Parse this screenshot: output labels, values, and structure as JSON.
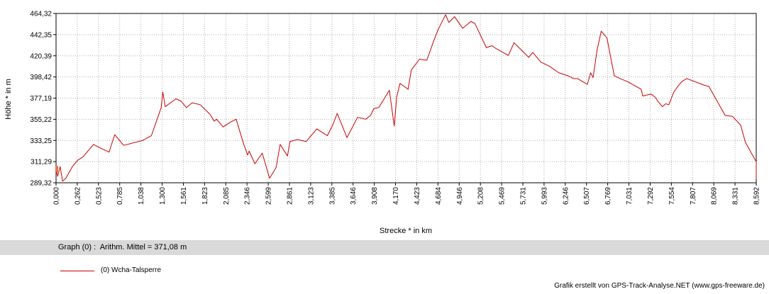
{
  "chart_data": {
    "type": "line",
    "xlabel": "Strecke *  in  km",
    "ylabel": "Höhe *  in  m",
    "xlim": [
      0,
      8.592
    ],
    "ylim": [
      289.32,
      464.32
    ],
    "grid": true,
    "x_ticks": [
      "0,000",
      "0,262",
      "0,523",
      "0,785",
      "1,038",
      "1,300",
      "1,561",
      "1,823",
      "2,085",
      "2,346",
      "2,599",
      "2,861",
      "3,123",
      "3,385",
      "3,646",
      "3,908",
      "4,170",
      "4,423",
      "4,684",
      "4,946",
      "5,208",
      "5,469",
      "5,731",
      "5,993",
      "6,246",
      "6,507",
      "6,769",
      "7,031",
      "7,292",
      "7,554",
      "7,807",
      "8,069",
      "8,331",
      "8,592"
    ],
    "y_ticks": [
      "464,32",
      "442,35",
      "420,39",
      "398,42",
      "377,19",
      "355,22",
      "333,25",
      "311,29",
      "289,32"
    ],
    "series": [
      {
        "name": "(0) Wcha-Talsperre",
        "color": "#cc0000",
        "x": [
          0.0,
          0.02,
          0.05,
          0.08,
          0.12,
          0.2,
          0.27,
          0.33,
          0.46,
          0.55,
          0.65,
          0.72,
          0.83,
          1.06,
          1.17,
          1.29,
          1.31,
          1.34,
          1.47,
          1.53,
          1.6,
          1.67,
          1.77,
          1.89,
          1.94,
          1.97,
          2.05,
          2.14,
          2.21,
          2.3,
          2.35,
          2.37,
          2.44,
          2.53,
          2.62,
          2.7,
          2.75,
          2.84,
          2.87,
          2.96,
          3.07,
          3.2,
          3.33,
          3.4,
          3.45,
          3.57,
          3.7,
          3.8,
          3.86,
          3.9,
          3.96,
          4.09,
          4.15,
          4.18,
          4.22,
          4.32,
          4.36,
          4.46,
          4.55,
          4.63,
          4.69,
          4.78,
          4.82,
          4.89,
          4.99,
          5.09,
          5.14,
          5.28,
          5.35,
          5.4,
          5.55,
          5.62,
          5.8,
          5.85,
          5.95,
          6.05,
          6.17,
          6.28,
          6.35,
          6.4,
          6.52,
          6.56,
          6.59,
          6.64,
          6.69,
          6.76,
          6.85,
          6.92,
          7.01,
          7.18,
          7.2,
          7.3,
          7.35,
          7.39,
          7.44,
          7.48,
          7.52,
          7.58,
          7.63,
          7.68,
          7.74,
          7.96,
          8.01,
          8.07,
          8.21,
          8.3,
          8.4,
          8.46,
          8.63,
          8.66,
          8.75,
          8.794
        ],
        "y": [
          303,
          296,
          306,
          291,
          294,
          306,
          313,
          316,
          329,
          325,
          321,
          339,
          328,
          333,
          338,
          367,
          383,
          368,
          376,
          374,
          367,
          372,
          370,
          360,
          353,
          355,
          347,
          352,
          355,
          330,
          318,
          322,
          309,
          320,
          294,
          305,
          329,
          317,
          332,
          334,
          332,
          345,
          338,
          350,
          361,
          336,
          357,
          355,
          359,
          366,
          367,
          385,
          348,
          378,
          392,
          386,
          406,
          417,
          416,
          435,
          448,
          463,
          455,
          461,
          449,
          456,
          454,
          429,
          431,
          428,
          421,
          434,
          419,
          424,
          414,
          410,
          403,
          400,
          397,
          397,
          391,
          403,
          398,
          427,
          446,
          439,
          400,
          397,
          394,
          386,
          379,
          381,
          378,
          373,
          368,
          371,
          370,
          383,
          389,
          394,
          397,
          390,
          389,
          380,
          359,
          358,
          349,
          331,
          311,
          310,
          308,
          293
        ]
      }
    ]
  },
  "stats": {
    "text": "Graph (0) :  Arithm. Mittel = 371,08 m"
  },
  "legend": {
    "label": "(0) Wcha-Talsperre"
  },
  "credit": "Grafik erstellt von GPS-Track-Analyse.NET (www.gps-freeware.de)"
}
